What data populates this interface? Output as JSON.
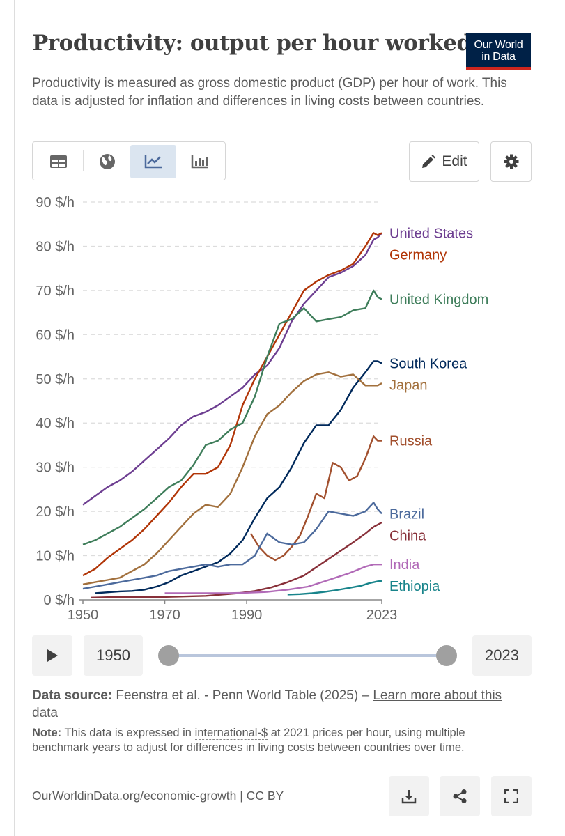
{
  "header": {
    "title": "Productivity: output per hour worked",
    "logo_line1": "Our World",
    "logo_line2": "in Data",
    "subtitle_pre": "Productivity is measured as ",
    "subtitle_link": "gross domestic product (GDP)",
    "subtitle_post": " per hour of work. This data is adjusted for inflation and differences in living costs between countries."
  },
  "toolbar": {
    "tabs": [
      {
        "icon": "table-icon",
        "active": false
      },
      {
        "icon": "globe-icon",
        "active": false
      },
      {
        "icon": "line-chart-icon",
        "active": true
      },
      {
        "icon": "bar-chart-icon",
        "active": false
      }
    ],
    "edit_label": "Edit",
    "edit_icon": "pencil-icon",
    "settings_icon": "gear-icon"
  },
  "timeline": {
    "play_icon": "play-icon",
    "start_year": "1950",
    "end_year": "2023"
  },
  "source": {
    "label": "Data source:",
    "text": " Feenstra et al. - Penn World Table (2025) – ",
    "link": "Learn more about this data"
  },
  "note": {
    "label": "Note:",
    "text_pre": " This data is expressed in ",
    "link": "international-$",
    "text_post": " at 2021 prices per hour, using multiple benchmark years to adjust for differences in living costs between countries over time."
  },
  "footer": {
    "text": "OurWorldinData.org/economic-growth | CC BY",
    "download_icon": "download-icon",
    "share_icon": "share-icon",
    "fullscreen_icon": "fullscreen-icon"
  },
  "chart_data": {
    "type": "line",
    "title": "Productivity: output per hour worked",
    "ylabel": "",
    "xlabel": "",
    "xlim": [
      1950,
      2023
    ],
    "ylim": [
      0,
      90
    ],
    "y_ticks": [
      0,
      10,
      20,
      30,
      40,
      50,
      60,
      70,
      80,
      90
    ],
    "y_tick_labels": [
      "0 $/h",
      "10 $/h",
      "20 $/h",
      "30 $/h",
      "40 $/h",
      "50 $/h",
      "60 $/h",
      "70 $/h",
      "80 $/h",
      "90 $/h"
    ],
    "x_ticks": [
      1950,
      1970,
      1990,
      2023
    ],
    "x_tick_labels": [
      "1950",
      "1970",
      "1990",
      "2023"
    ],
    "grid": "horizontal dashed",
    "legend": "line-end labels on the right",
    "series": [
      {
        "name": "United States",
        "color": "#6d3e91",
        "x": [
          1950,
          1953,
          1956,
          1959,
          1962,
          1965,
          1968,
          1971,
          1974,
          1977,
          1980,
          1983,
          1986,
          1989,
          1992,
          1995,
          1998,
          2001,
          2004,
          2007,
          2010,
          2013,
          2016,
          2019,
          2021,
          2022,
          2023
        ],
        "y": [
          21.5,
          23.5,
          25.5,
          27,
          29,
          31.5,
          34,
          36.5,
          39.5,
          41.5,
          42.5,
          44,
          46,
          48,
          51,
          53,
          57,
          63,
          67,
          70,
          73,
          74,
          75.5,
          78,
          81.5,
          82,
          83
        ]
      },
      {
        "name": "Germany",
        "color": "#b13507",
        "x": [
          1950,
          1953,
          1956,
          1959,
          1962,
          1965,
          1968,
          1971,
          1974,
          1977,
          1980,
          1983,
          1986,
          1989,
          1992,
          1995,
          1998,
          2001,
          2004,
          2007,
          2010,
          2013,
          2016,
          2019,
          2021,
          2022,
          2023
        ],
        "y": [
          5.5,
          7,
          9.5,
          11.5,
          13.5,
          16,
          19,
          22,
          25.5,
          28.5,
          28.5,
          30,
          35,
          44,
          50,
          55,
          60,
          65,
          70,
          72,
          73.5,
          74.5,
          76,
          80,
          83,
          82.5,
          83
        ]
      },
      {
        "name": "United Kingdom",
        "color": "#3e7d5a",
        "x": [
          1950,
          1953,
          1956,
          1959,
          1962,
          1965,
          1968,
          1971,
          1974,
          1977,
          1980,
          1983,
          1986,
          1989,
          1992,
          1995,
          1998,
          2001,
          2004,
          2007,
          2010,
          2013,
          2016,
          2019,
          2021,
          2022,
          2023
        ],
        "y": [
          12.5,
          13.5,
          15,
          16.5,
          18.5,
          20.5,
          23,
          25.5,
          27,
          30.5,
          35,
          36,
          38.5,
          40,
          46,
          55,
          62.5,
          63.5,
          66,
          63,
          63.5,
          64,
          65.5,
          66,
          70,
          68.5,
          68
        ]
      },
      {
        "name": "South Korea",
        "color": "#00295b",
        "x": [
          1953,
          1956,
          1959,
          1962,
          1965,
          1968,
          1971,
          1974,
          1977,
          1980,
          1983,
          1986,
          1989,
          1992,
          1995,
          1998,
          2001,
          2004,
          2007,
          2010,
          2013,
          2016,
          2019,
          2021,
          2022,
          2023
        ],
        "y": [
          1.5,
          1.7,
          1.9,
          2,
          2.3,
          3,
          4,
          5.5,
          6.5,
          7.5,
          8.5,
          10.5,
          13.5,
          18.5,
          23,
          25.5,
          30,
          35.5,
          39.5,
          39.5,
          43,
          48,
          51.5,
          54,
          54,
          53.5
        ]
      },
      {
        "name": "Japan",
        "color": "#a2703d",
        "x": [
          1950,
          1953,
          1956,
          1959,
          1962,
          1965,
          1968,
          1971,
          1974,
          1977,
          1980,
          1983,
          1986,
          1989,
          1992,
          1995,
          1998,
          2001,
          2004,
          2007,
          2010,
          2013,
          2016,
          2019,
          2021,
          2022,
          2023
        ],
        "y": [
          3.5,
          4,
          4.5,
          5,
          6.5,
          8,
          10.5,
          13.5,
          16.5,
          19.5,
          21.5,
          21,
          24,
          30,
          37,
          42,
          44,
          47,
          49.5,
          51,
          51.5,
          50.5,
          51,
          48.5,
          48.5,
          48.5,
          49
        ]
      },
      {
        "name": "Russia",
        "color": "#a2502e",
        "x": [
          1991,
          1993,
          1995,
          1997,
          1999,
          2001,
          2003,
          2005,
          2007,
          2009,
          2011,
          2013,
          2015,
          2017,
          2019,
          2021,
          2022,
          2023
        ],
        "y": [
          15,
          12,
          10,
          9,
          10,
          12,
          14.5,
          19,
          24,
          23,
          31,
          30,
          27,
          28,
          32,
          37,
          36,
          36
        ]
      },
      {
        "name": "Brazil",
        "color": "#4c6a9c",
        "x": [
          1950,
          1953,
          1956,
          1959,
          1962,
          1965,
          1968,
          1971,
          1974,
          1977,
          1980,
          1983,
          1986,
          1989,
          1992,
          1995,
          1998,
          2001,
          2004,
          2007,
          2010,
          2013,
          2016,
          2019,
          2021,
          2022,
          2023
        ],
        "y": [
          2.5,
          3,
          3.5,
          4,
          4.5,
          5,
          5.5,
          6.5,
          7,
          7.5,
          8,
          7.5,
          8,
          8,
          10,
          15,
          13,
          12.5,
          13,
          16,
          20,
          19.5,
          19,
          20,
          22,
          20.5,
          19.5
        ]
      },
      {
        "name": "China",
        "color": "#883039",
        "x": [
          1952,
          1956,
          1960,
          1964,
          1968,
          1972,
          1976,
          1980,
          1984,
          1988,
          1992,
          1996,
          2000,
          2004,
          2008,
          2012,
          2016,
          2019,
          2021,
          2023
        ],
        "y": [
          0.5,
          0.6,
          0.6,
          0.6,
          0.6,
          0.7,
          0.8,
          0.9,
          1.2,
          1.5,
          2,
          2.8,
          4,
          5.5,
          8,
          10.5,
          13,
          15,
          16.5,
          17.5
        ]
      },
      {
        "name": "India",
        "color": "#b16ab7",
        "x": [
          1970,
          1975,
          1980,
          1985,
          1990,
          1995,
          2000,
          2005,
          2010,
          2015,
          2019,
          2021,
          2023
        ],
        "y": [
          1.5,
          1.5,
          1.5,
          1.5,
          1.6,
          1.8,
          2.3,
          3,
          4.5,
          6,
          7.5,
          8,
          8
        ]
      },
      {
        "name": "Ethiopia",
        "color": "#18848b",
        "x": [
          2000,
          2003,
          2006,
          2009,
          2012,
          2015,
          2018,
          2020,
          2022,
          2023
        ],
        "y": [
          1.2,
          1.3,
          1.5,
          1.8,
          2.2,
          2.7,
          3.2,
          3.8,
          4.2,
          4.3
        ]
      }
    ]
  }
}
